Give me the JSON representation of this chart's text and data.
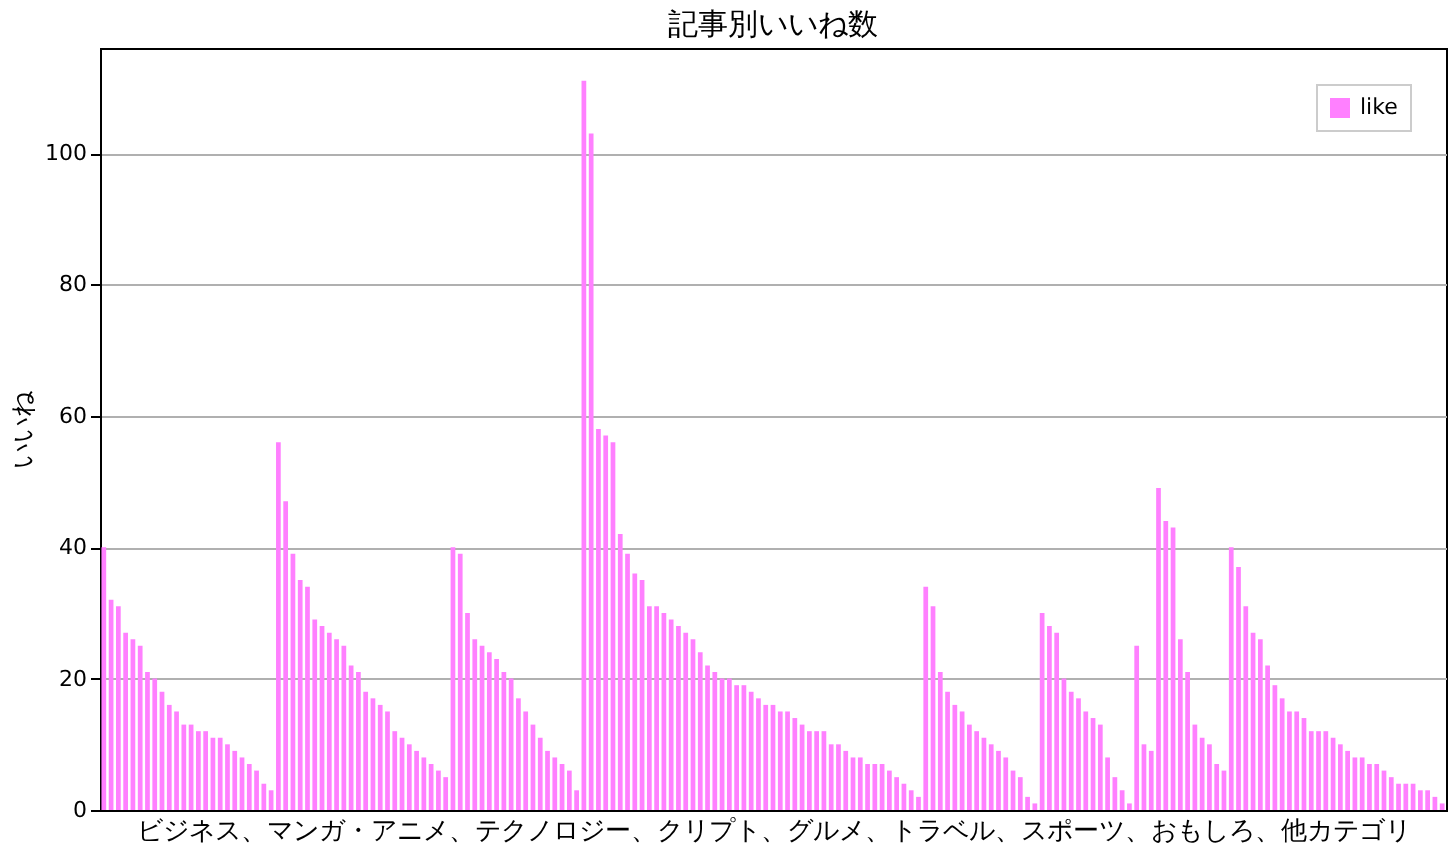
{
  "chart_data": {
    "type": "bar",
    "title": "記事別いいね数",
    "xlabel": "ビジネス、マンガ・アニメ、テクノロジー、クリプト、グルメ、トラベル、スポーツ、おもしろ、他カテゴリ",
    "ylabel": "いいね",
    "categories": [
      null,
      null,
      null,
      null,
      null,
      null,
      null,
      null,
      null,
      null,
      null,
      null,
      null,
      null,
      null,
      null,
      null,
      null,
      null,
      null,
      null,
      null,
      null,
      null,
      null,
      null,
      null,
      null,
      null,
      null,
      null,
      null,
      null,
      null,
      null,
      null,
      null,
      null,
      null,
      null,
      null,
      null,
      null,
      null,
      null,
      null,
      null,
      null,
      null,
      null,
      null,
      null,
      null,
      null,
      null,
      null,
      null,
      null,
      null,
      null,
      null,
      null,
      null,
      null,
      null,
      null,
      null,
      null,
      null,
      null,
      null,
      null,
      null,
      null,
      null,
      null,
      null,
      null,
      null,
      null,
      null,
      null,
      null,
      null,
      null,
      null,
      null,
      null,
      null,
      null,
      null,
      null,
      null,
      null,
      null,
      null,
      null,
      null,
      null,
      null,
      null,
      null,
      null,
      null,
      null,
      null,
      null,
      null,
      null,
      null,
      null,
      null,
      null,
      null,
      null,
      null,
      null,
      null,
      null,
      null,
      null,
      null,
      null,
      null,
      null,
      null,
      null,
      null,
      null,
      null,
      null,
      null,
      null,
      null,
      null,
      null,
      null,
      null,
      null,
      null,
      null,
      null,
      null,
      null,
      null,
      null,
      null,
      null,
      null,
      null,
      null,
      null,
      null,
      null,
      null,
      null,
      null,
      null,
      null,
      null,
      null,
      null,
      null,
      null,
      null,
      null,
      null,
      null,
      null,
      null,
      null,
      null,
      null,
      null,
      null,
      null,
      null,
      null,
      null,
      null,
      null,
      null,
      null,
      null,
      null
    ],
    "series": [
      {
        "name": "like",
        "color": "#ff80ff",
        "values": [
          40,
          32,
          31,
          27,
          26,
          25,
          21,
          20,
          18,
          16,
          15,
          13,
          13,
          12,
          12,
          11,
          11,
          10,
          9,
          8,
          7,
          6,
          4,
          3,
          56,
          47,
          39,
          35,
          34,
          29,
          28,
          27,
          26,
          25,
          22,
          21,
          18,
          17,
          16,
          15,
          12,
          11,
          10,
          9,
          8,
          7,
          6,
          5,
          40,
          39,
          30,
          26,
          25,
          24,
          23,
          21,
          20,
          17,
          15,
          13,
          11,
          9,
          8,
          7,
          6,
          3,
          111,
          103,
          58,
          57,
          56,
          42,
          39,
          36,
          35,
          31,
          31,
          30,
          29,
          28,
          27,
          26,
          24,
          22,
          21,
          20,
          20,
          19,
          19,
          18,
          17,
          16,
          16,
          15,
          15,
          14,
          13,
          12,
          12,
          12,
          10,
          10,
          9,
          8,
          8,
          7,
          7,
          7,
          6,
          5,
          4,
          3,
          2,
          34,
          31,
          21,
          18,
          16,
          15,
          13,
          12,
          11,
          10,
          9,
          8,
          6,
          5,
          2,
          1,
          30,
          28,
          27,
          20,
          18,
          17,
          15,
          14,
          13,
          8,
          5,
          3,
          1,
          25,
          10,
          9,
          49,
          44,
          43,
          26,
          21,
          13,
          11,
          10,
          7,
          6,
          40,
          37,
          31,
          27,
          26,
          22,
          19,
          17,
          15,
          15,
          14,
          12,
          12,
          12,
          11,
          10,
          9,
          8,
          8,
          7,
          7,
          6,
          5,
          4,
          4,
          4,
          3,
          3,
          2,
          1
        ]
      }
    ],
    "ylim": [
      0,
      116
    ],
    "yticks": [
      0,
      20,
      40,
      60,
      80,
      100
    ],
    "grid": "y",
    "legend": "top right"
  }
}
